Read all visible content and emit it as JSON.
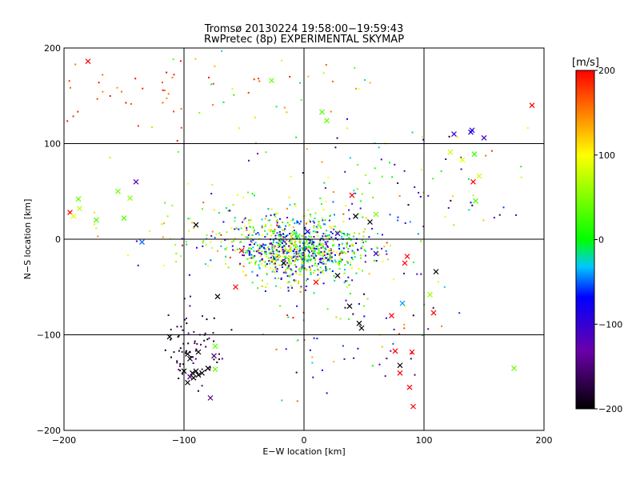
{
  "chart_data": {
    "type": "scatter",
    "title": "Tromsø 20130224 19:58:00−19:59:43",
    "subtitle": "RwPretec (8p) EXPERIMENTAL SKYMAP",
    "xlabel": "E−W location [km]",
    "ylabel": "N−S location [km]",
    "xlim": [
      -200,
      200
    ],
    "ylim": [
      -200,
      200
    ],
    "x_ticks": [
      -200,
      -100,
      0,
      100,
      200
    ],
    "x_tick_labels": [
      "−200",
      "−100",
      "0",
      "100",
      "200"
    ],
    "y_ticks": [
      -200,
      -100,
      0,
      100,
      200
    ],
    "y_tick_labels": [
      "−200",
      "−100",
      "0",
      "100",
      "200"
    ],
    "grid": true,
    "colorbar": {
      "label": "[m/s]",
      "range": [
        -200,
        200
      ],
      "ticks": [
        200,
        100,
        0,
        -100,
        -200
      ],
      "tick_labels": [
        "200",
        "100",
        "0",
        "−100",
        "−200"
      ],
      "colors": [
        "#000000",
        "#6a00a8",
        "#0000ff",
        "#00c8ff",
        "#00ff00",
        "#ffff00",
        "#ff0000"
      ]
    },
    "markers": [
      {
        "x": -180,
        "y": 186,
        "v": 200
      },
      {
        "x": 190,
        "y": 140,
        "v": 200
      },
      {
        "x": -27,
        "y": 166,
        "v": 40
      },
      {
        "x": 15,
        "y": 133,
        "v": 30
      },
      {
        "x": 19,
        "y": 124,
        "v": 40
      },
      {
        "x": 125,
        "y": 110,
        "v": -100
      },
      {
        "x": 140,
        "y": 114,
        "v": -100
      },
      {
        "x": 139,
        "y": 112,
        "v": -90
      },
      {
        "x": 150,
        "y": 106,
        "v": -110
      },
      {
        "x": 122,
        "y": 91,
        "v": 80
      },
      {
        "x": 142,
        "y": 89,
        "v": 20
      },
      {
        "x": 132,
        "y": 83,
        "v": 90
      },
      {
        "x": 146,
        "y": 66,
        "v": 80
      },
      {
        "x": 141,
        "y": 60,
        "v": 200
      },
      {
        "x": 143,
        "y": 40,
        "v": 30
      },
      {
        "x": -140,
        "y": 60,
        "v": -120
      },
      {
        "x": -155,
        "y": 50,
        "v": 40
      },
      {
        "x": -145,
        "y": 43,
        "v": 50
      },
      {
        "x": -188,
        "y": 42,
        "v": 40
      },
      {
        "x": -195,
        "y": 28,
        "v": 200
      },
      {
        "x": -192,
        "y": 24,
        "v": 90
      },
      {
        "x": -187,
        "y": 32,
        "v": 70
      },
      {
        "x": -173,
        "y": 20,
        "v": 30
      },
      {
        "x": -150,
        "y": 22,
        "v": 30
      },
      {
        "x": -135,
        "y": -3,
        "v": -50
      },
      {
        "x": 40,
        "y": 46,
        "v": 200
      },
      {
        "x": 60,
        "y": 26,
        "v": 50
      },
      {
        "x": 43,
        "y": 24,
        "v": -200
      },
      {
        "x": 55,
        "y": 18,
        "v": -200
      },
      {
        "x": -5,
        "y": 3,
        "v": 10
      },
      {
        "x": -8,
        "y": 6,
        "v": 30
      },
      {
        "x": 3,
        "y": 8,
        "v": -80
      },
      {
        "x": 28,
        "y": 6,
        "v": -100
      },
      {
        "x": -17,
        "y": -25,
        "v": -200
      },
      {
        "x": -52,
        "y": -12,
        "v": 200
      },
      {
        "x": 60,
        "y": -15,
        "v": -100
      },
      {
        "x": 86,
        "y": -18,
        "v": 200
      },
      {
        "x": 84,
        "y": -25,
        "v": 200
      },
      {
        "x": 110,
        "y": -34,
        "v": -200
      },
      {
        "x": 10,
        "y": -45,
        "v": 200
      },
      {
        "x": 28,
        "y": -38,
        "v": -200
      },
      {
        "x": -90,
        "y": 15,
        "v": -200
      },
      {
        "x": -57,
        "y": -50,
        "v": 200
      },
      {
        "x": -72,
        "y": -60,
        "v": -200
      },
      {
        "x": 38,
        "y": -70,
        "v": -200
      },
      {
        "x": 82,
        "y": -67,
        "v": -40
      },
      {
        "x": 105,
        "y": -58,
        "v": 60
      },
      {
        "x": 73,
        "y": -80,
        "v": 200
      },
      {
        "x": 108,
        "y": -77,
        "v": 200
      },
      {
        "x": 46,
        "y": -88,
        "v": -200
      },
      {
        "x": 48,
        "y": -93,
        "v": -200
      },
      {
        "x": -112,
        "y": -102,
        "v": -200
      },
      {
        "x": -88,
        "y": -118,
        "v": -200
      },
      {
        "x": -97,
        "y": -120,
        "v": -200
      },
      {
        "x": -95,
        "y": -125,
        "v": -200
      },
      {
        "x": -93,
        "y": -140,
        "v": -200
      },
      {
        "x": -90,
        "y": -138,
        "v": -200
      },
      {
        "x": -88,
        "y": -142,
        "v": -200
      },
      {
        "x": -85,
        "y": -140,
        "v": -200
      },
      {
        "x": -92,
        "y": -145,
        "v": -200
      },
      {
        "x": -97,
        "y": -150,
        "v": -200
      },
      {
        "x": -80,
        "y": -135,
        "v": -200
      },
      {
        "x": -100,
        "y": -138,
        "v": -200
      },
      {
        "x": -75,
        "y": -122,
        "v": -150
      },
      {
        "x": -74,
        "y": -112,
        "v": 40
      },
      {
        "x": -74,
        "y": -136,
        "v": 40
      },
      {
        "x": -95,
        "y": -144,
        "v": -150
      },
      {
        "x": -78,
        "y": -166,
        "v": -150
      },
      {
        "x": 76,
        "y": -117,
        "v": 200
      },
      {
        "x": 90,
        "y": -118,
        "v": 200
      },
      {
        "x": 80,
        "y": -132,
        "v": -200
      },
      {
        "x": 80,
        "y": -140,
        "v": 200
      },
      {
        "x": 88,
        "y": -155,
        "v": 200
      },
      {
        "x": 91,
        "y": -175,
        "v": 200
      },
      {
        "x": 175,
        "y": -135,
        "v": 40
      }
    ],
    "clusters": [
      {
        "cx": 0,
        "cy": -10,
        "sx": 28,
        "sy": 16,
        "n": 900,
        "vmin": -130,
        "vmax": 130,
        "seed": 11
      },
      {
        "cx": -60,
        "cy": 10,
        "sx": 45,
        "sy": 20,
        "n": 140,
        "vmin": -120,
        "vmax": 200,
        "seed": 23
      },
      {
        "cx": -90,
        "cy": -110,
        "sx": 12,
        "sy": 22,
        "n": 70,
        "vmin": -200,
        "vmax": -140,
        "seed": 37
      },
      {
        "cx": 40,
        "cy": -90,
        "sx": 45,
        "sy": 40,
        "n": 80,
        "vmin": -200,
        "vmax": 200,
        "seed": 41
      },
      {
        "cx": 60,
        "cy": 60,
        "sx": 50,
        "sy": 30,
        "n": 60,
        "vmin": -200,
        "vmax": 200,
        "seed": 53
      },
      {
        "cx": -130,
        "cy": 150,
        "sx": 45,
        "sy": 22,
        "n": 35,
        "vmin": 140,
        "vmax": 200,
        "seed": 61
      },
      {
        "cx": -40,
        "cy": 150,
        "sx": 50,
        "sy": 30,
        "n": 45,
        "vmin": -40,
        "vmax": 200,
        "seed": 67
      },
      {
        "cx": 130,
        "cy": 30,
        "sx": 40,
        "sy": 50,
        "n": 30,
        "vmin": -200,
        "vmax": 200,
        "seed": 71
      }
    ]
  }
}
